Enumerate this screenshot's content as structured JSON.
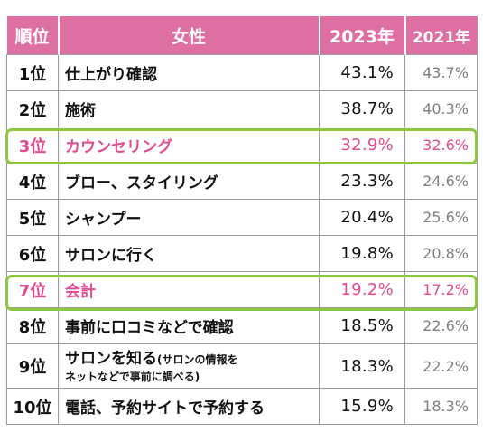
{
  "header": {
    "rank": "順位",
    "gender": "女性",
    "year1": "2023年",
    "year2": "2021年"
  },
  "rows": [
    {
      "rank": "1位",
      "item": "仕上がり確認",
      "y1": "43.1%",
      "y2": "43.7%"
    },
    {
      "rank": "2位",
      "item": "施術",
      "y1": "38.7%",
      "y2": "40.3%"
    },
    {
      "rank": "3位",
      "item": "カウンセリング",
      "y1": "32.9%",
      "y2": "32.6%"
    },
    {
      "rank": "4位",
      "item": "ブロー、スタイリング",
      "y1": "23.3%",
      "y2": "24.6%"
    },
    {
      "rank": "5位",
      "item": "シャンプー",
      "y1": "20.4%",
      "y2": "25.6%"
    },
    {
      "rank": "6位",
      "item": "サロンに行く",
      "y1": "19.8%",
      "y2": "20.8%"
    },
    {
      "rank": "7位",
      "item": "会計",
      "y1": "19.2%",
      "y2": "17.2%"
    },
    {
      "rank": "8位",
      "item": "事前に口コミなどで確認",
      "y1": "18.5%",
      "y2": "22.6%"
    },
    {
      "rank": "9位",
      "item": "サロンを知る",
      "note_line1": "(サロンの情報を",
      "note_line2": "ネットなどで事前に調べる)",
      "y1": "18.3%",
      "y2": "22.2%"
    },
    {
      "rank": "10位",
      "item": "電話、予約サイトで予約する",
      "y1": "15.9%",
      "y2": "18.3%"
    }
  ],
  "colors": {
    "header_bg": "#de6fa2",
    "highlight_text": "#e04a8f",
    "highlight_border": "#8dc63f"
  }
}
